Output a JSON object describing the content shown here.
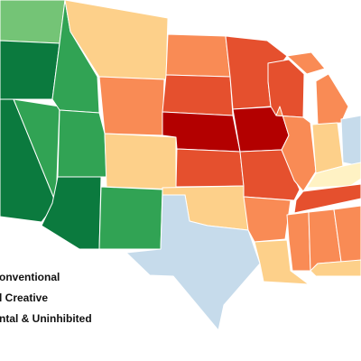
{
  "legend": {
    "items": [
      "onventional",
      "l Creative",
      "ntal & Uninhibited"
    ]
  }
}
